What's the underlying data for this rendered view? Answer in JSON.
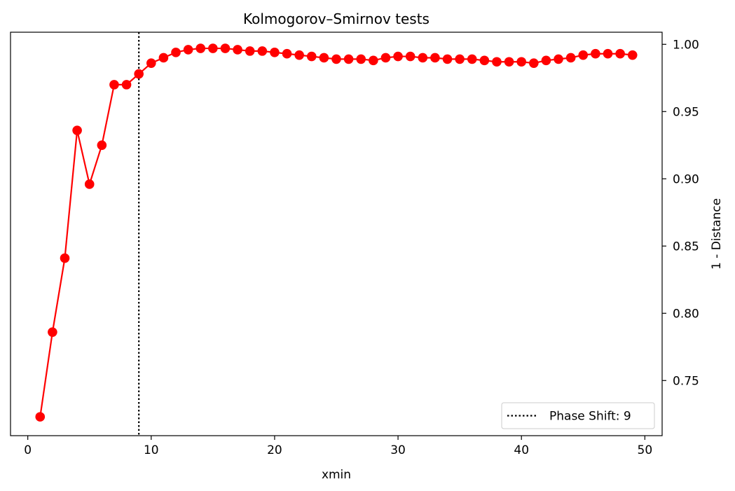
{
  "chart_data": {
    "type": "line",
    "title": "Kolmogorov–Smirnov tests",
    "xlabel": "xmin",
    "ylabel": "1 - Distance",
    "y_axis_position": "right",
    "xlim": [
      -1.4,
      51.4
    ],
    "ylim": [
      0.709,
      1.009
    ],
    "x_ticks": [
      0,
      10,
      20,
      30,
      40,
      50
    ],
    "y_ticks": [
      0.75,
      0.8,
      0.85,
      0.9,
      0.95,
      1.0
    ],
    "x_tick_labels": [
      "0",
      "10",
      "20",
      "30",
      "40",
      "50"
    ],
    "y_tick_labels": [
      "0.75",
      "0.80",
      "0.85",
      "0.90",
      "0.95",
      "1.00"
    ],
    "grid": false,
    "legend_position": "bottom-right",
    "series": [
      {
        "color": "#ff0000",
        "marker": "circle",
        "x": [
          1,
          2,
          3,
          4,
          5,
          6,
          7,
          8,
          9,
          10,
          11,
          12,
          13,
          14,
          15,
          16,
          17,
          18,
          19,
          20,
          21,
          22,
          23,
          24,
          25,
          26,
          27,
          28,
          29,
          30,
          31,
          32,
          33,
          34,
          35,
          36,
          37,
          38,
          39,
          40,
          41,
          42,
          43,
          44,
          45,
          46,
          47,
          48,
          49
        ],
        "y": [
          0.723,
          0.786,
          0.841,
          0.936,
          0.896,
          0.925,
          0.97,
          0.97,
          0.978,
          0.986,
          0.99,
          0.994,
          0.996,
          0.997,
          0.997,
          0.997,
          0.996,
          0.995,
          0.995,
          0.994,
          0.993,
          0.992,
          0.991,
          0.99,
          0.989,
          0.989,
          0.989,
          0.988,
          0.99,
          0.991,
          0.991,
          0.99,
          0.99,
          0.989,
          0.989,
          0.989,
          0.988,
          0.987,
          0.987,
          0.987,
          0.986,
          0.988,
          0.989,
          0.99,
          0.992,
          0.993,
          0.993,
          0.993,
          0.992
        ]
      }
    ],
    "annotations": [
      {
        "type": "vline",
        "x": 9,
        "style": "dotted",
        "color": "#000000",
        "label": "Phase Shift: 9"
      }
    ]
  }
}
